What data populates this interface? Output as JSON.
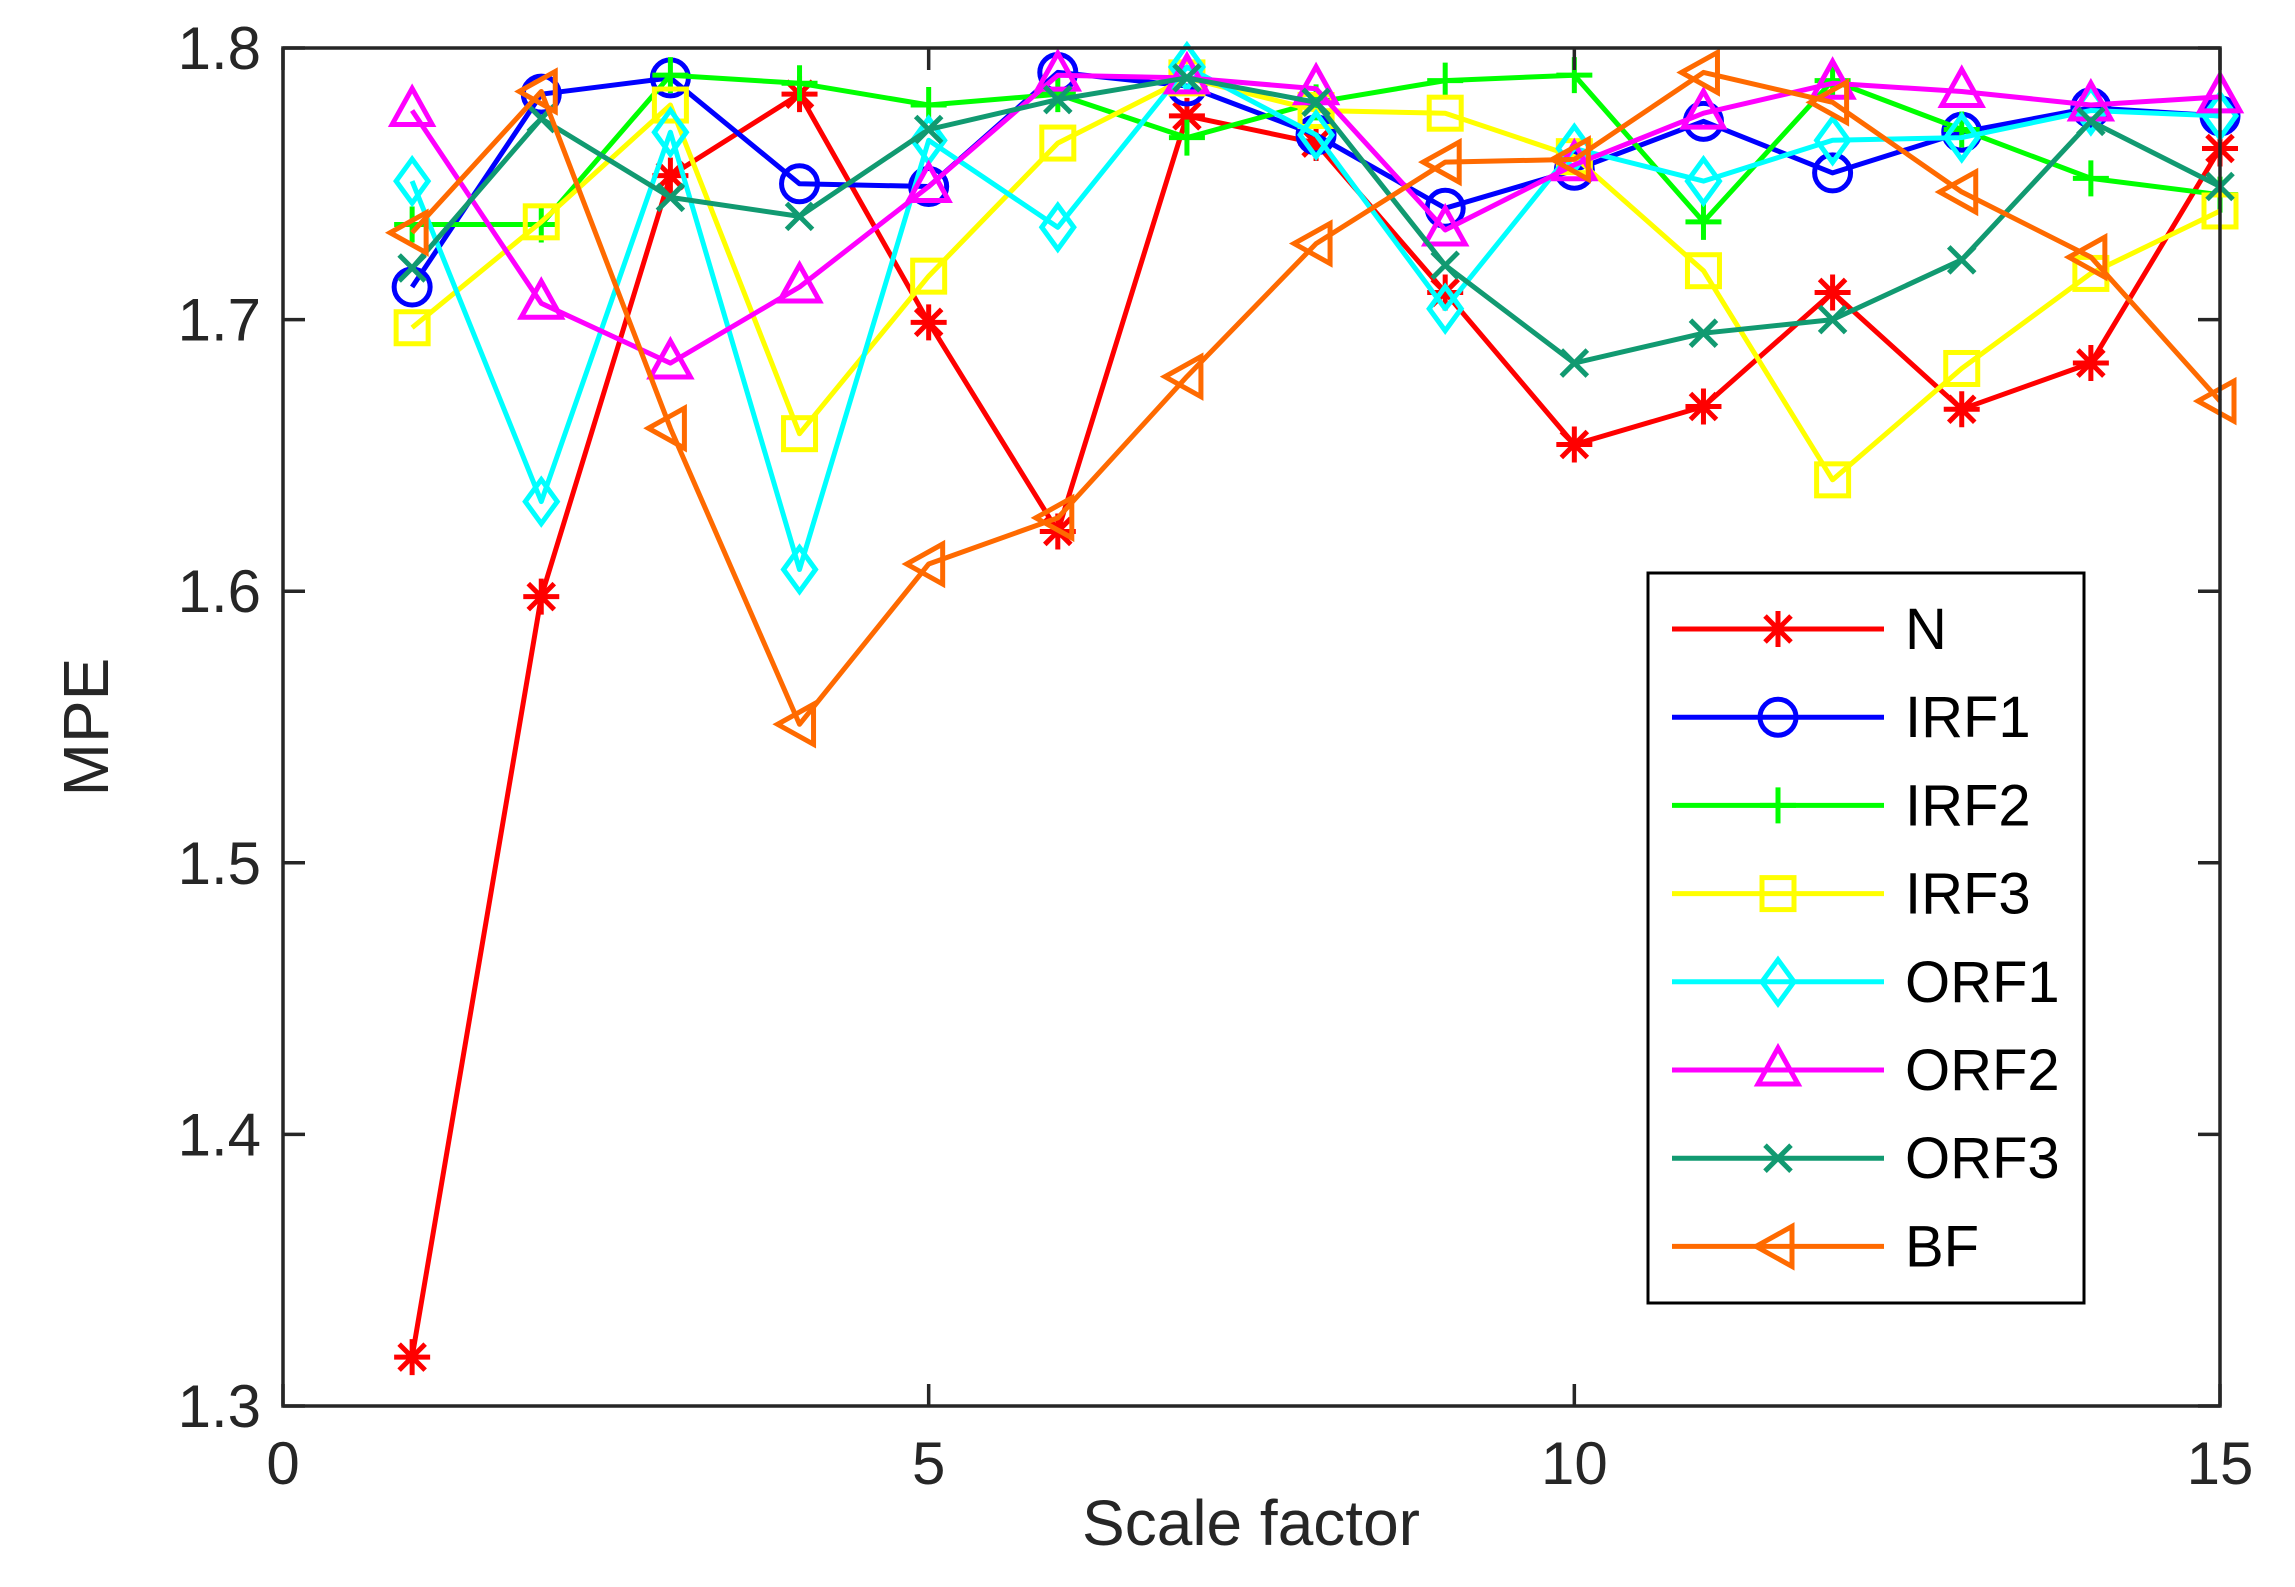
{
  "chart_data": {
    "type": "line",
    "title": "",
    "xlabel": "Scale factor",
    "ylabel": "MPE",
    "xlim": [
      0,
      15
    ],
    "ylim": [
      1.3,
      1.8
    ],
    "xticks": [
      0,
      5,
      10,
      15
    ],
    "xtick_labels": [
      "0",
      "5",
      "10",
      "15"
    ],
    "yticks": [
      1.3,
      1.4,
      1.5,
      1.6,
      1.7,
      1.8
    ],
    "ytick_labels": [
      "1.3",
      "1.4",
      "1.5",
      "1.6",
      "1.7",
      "1.8"
    ],
    "grid": false,
    "legend_position": "lower-right",
    "x": [
      1,
      2,
      3,
      4,
      5,
      6,
      7,
      8,
      9,
      10,
      11,
      12,
      13,
      14,
      15
    ],
    "series": [
      {
        "name": "N",
        "color": "#ff0000",
        "marker": "asterisk",
        "values": [
          1.318,
          1.598,
          1.753,
          1.783,
          1.699,
          1.622,
          1.775,
          1.765,
          1.71,
          1.654,
          1.668,
          1.71,
          1.667,
          1.684,
          1.763
        ]
      },
      {
        "name": "IRF1",
        "color": "#0000ff",
        "marker": "circle",
        "values": [
          1.712,
          1.783,
          1.789,
          1.75,
          1.749,
          1.791,
          1.786,
          1.768,
          1.741,
          1.755,
          1.773,
          1.754,
          1.769,
          1.778,
          1.775
        ]
      },
      {
        "name": "IRF2",
        "color": "#00ff00",
        "marker": "plus",
        "values": [
          1.735,
          1.735,
          1.79,
          1.787,
          1.779,
          1.783,
          1.767,
          1.78,
          1.788,
          1.79,
          1.736,
          1.788,
          1.77,
          1.752,
          1.746
        ]
      },
      {
        "name": "IRF3",
        "color": "#ffff00",
        "marker": "square",
        "values": [
          1.697,
          1.736,
          1.779,
          1.658,
          1.716,
          1.765,
          1.789,
          1.777,
          1.776,
          1.76,
          1.718,
          1.641,
          1.682,
          1.717,
          1.74
        ]
      },
      {
        "name": "ORF1",
        "color": "#00ffff",
        "marker": "diamond",
        "values": [
          1.751,
          1.633,
          1.769,
          1.608,
          1.766,
          1.734,
          1.793,
          1.768,
          1.704,
          1.763,
          1.751,
          1.766,
          1.767,
          1.777,
          1.775
        ]
      },
      {
        "name": "ORF2",
        "color": "#ff00ff",
        "marker": "triangle-up",
        "values": [
          1.777,
          1.706,
          1.684,
          1.712,
          1.749,
          1.79,
          1.789,
          1.785,
          1.733,
          1.757,
          1.776,
          1.787,
          1.784,
          1.779,
          1.782
        ]
      },
      {
        "name": "ORF3",
        "color": "#119a71",
        "marker": "x",
        "values": [
          1.719,
          1.774,
          1.745,
          1.738,
          1.77,
          1.781,
          1.789,
          1.78,
          1.72,
          1.684,
          1.695,
          1.7,
          1.722,
          1.773,
          1.749
        ]
      },
      {
        "name": "BF",
        "color": "#ff6a00",
        "marker": "triangle-left",
        "values": [
          1.732,
          1.784,
          1.66,
          1.551,
          1.61,
          1.627,
          1.679,
          1.728,
          1.758,
          1.759,
          1.791,
          1.78,
          1.747,
          1.723,
          1.67
        ]
      }
    ]
  }
}
